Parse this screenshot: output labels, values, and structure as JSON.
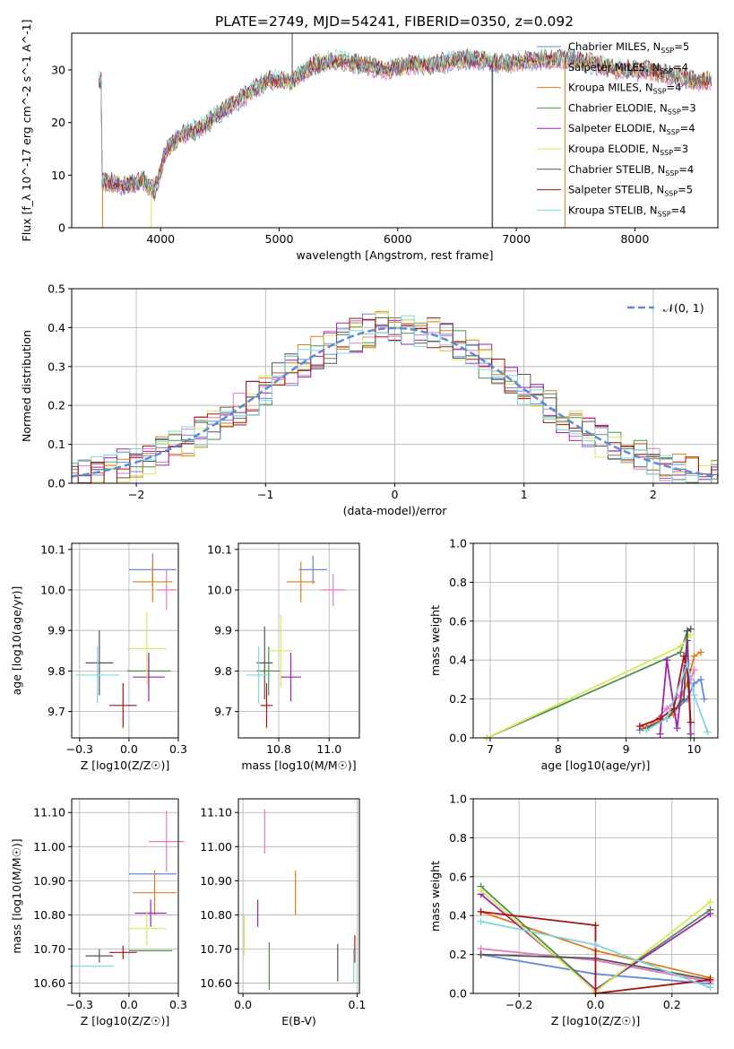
{
  "figure_title": "PLATE=2749, MJD=54241, FIBERID=0350, z=0.092",
  "colors": {
    "Chabrier MILES": "#6687dd",
    "Salpeter MILES": "#e377c2",
    "Kroupa MILES": "#e07b1a",
    "Chabrier ELODIE": "#4f8f4f",
    "Salpeter ELODIE": "#a020b0",
    "Kroupa ELODIE": "#d6ea58",
    "Chabrier STELIB": "#555555",
    "Salpeter STELIB": "#aa1111",
    "Kroupa STELIB": "#7fd6de"
  },
  "chart_data": [
    {
      "type": "line",
      "id": "spectrum",
      "xlabel": "wavelength [Angstrom, rest frame]",
      "ylabel": "Flux [f_λ 10^-17 erg cm^-2 s^-1 A^-1]",
      "xlim": [
        3250,
        8700
      ],
      "ylim": [
        0,
        37
      ],
      "xticks": [
        4000,
        5000,
        6000,
        7000,
        8000
      ],
      "yticks": [
        0,
        10,
        20,
        30
      ],
      "grid": false,
      "legend_position": "upper-right",
      "spectrum_shape": {
        "x": [
          3500,
          3700,
          3850,
          3950,
          4050,
          4200,
          4350,
          4500,
          4700,
          4900,
          5100,
          5300,
          5500,
          5700,
          5900,
          6100,
          6300,
          6500,
          6700,
          6900,
          7100,
          7300,
          7500,
          7700,
          7900,
          8100,
          8300,
          8500,
          8650
        ],
        "y": [
          9,
          8,
          9,
          7,
          15,
          18,
          19,
          22,
          25,
          28,
          28,
          31,
          32,
          31,
          30,
          31,
          31,
          32,
          32,
          31,
          32,
          32,
          32,
          31,
          30,
          30,
          29,
          28,
          28
        ]
      },
      "series": [
        {
          "name": "Chabrier MILES, N_SSP=5",
          "label_main": "Chabrier MILES, N",
          "label_sub": "SSP",
          "label_tail": "=5"
        },
        {
          "name": "Salpeter MILES, N_SSP=4",
          "label_main": "Salpeter MILES, N",
          "label_sub": "SSP",
          "label_tail": "=4"
        },
        {
          "name": "Kroupa MILES, N_SSP=4",
          "label_main": "Kroupa MILES, N",
          "label_sub": "SSP",
          "label_tail": "=4"
        },
        {
          "name": "Chabrier ELODIE, N_SSP=3",
          "label_main": "Chabrier ELODIE, N",
          "label_sub": "SSP",
          "label_tail": "=3"
        },
        {
          "name": "Salpeter ELODIE, N_SSP=4",
          "label_main": "Salpeter ELODIE, N",
          "label_sub": "SSP",
          "label_tail": "=4"
        },
        {
          "name": "Kroupa ELODIE, N_SSP=3",
          "label_main": "Kroupa ELODIE, N",
          "label_sub": "SSP",
          "label_tail": "=3"
        },
        {
          "name": "Chabrier STELIB, N_SSP=4",
          "label_main": "Chabrier STELIB, N",
          "label_sub": "SSP",
          "label_tail": "=4"
        },
        {
          "name": "Salpeter STELIB, N_SSP=5",
          "label_main": "Salpeter STELIB, N",
          "label_sub": "SSP",
          "label_tail": "=5"
        },
        {
          "name": "Kroupa STELIB, N_SSP=4",
          "label_main": "Kroupa STELIB, N",
          "label_sub": "SSP",
          "label_tail": "=4"
        }
      ]
    },
    {
      "type": "histogram",
      "id": "residuals",
      "xlabel": "(data-model)/error",
      "ylabel": "Normed distribution",
      "xlim": [
        -2.5,
        2.5
      ],
      "ylim": [
        0,
        0.5
      ],
      "xticks": [
        -2,
        -1,
        0,
        1,
        2
      ],
      "yticks": [
        0.0,
        0.1,
        0.2,
        0.3,
        0.4,
        0.5
      ],
      "grid": true,
      "legend_position": "upper-right",
      "reference_curve": {
        "name": "N(0,1)",
        "label": "𝒩(0, 1)",
        "mean": 0,
        "sigma": 1
      },
      "bin_width": 0.1
    },
    {
      "type": "errorbar",
      "id": "age_vs_Z",
      "xlabel": "Z [log10(Z/Z☉)]",
      "ylabel": "age [log10(age/yr)]",
      "xlim": [
        -0.29,
        0.25
      ],
      "ylim": [
        9.635,
        10.115
      ],
      "xticks": [
        -0.25,
        0.0,
        0.25
      ],
      "yticks": [
        9.7,
        9.8,
        9.9,
        10.0,
        10.1
      ],
      "grid": true,
      "points": [
        {
          "series": "Chabrier MILES",
          "x": 0.12,
          "y": 10.05,
          "xerr": 0.12,
          "yerr": 0.04
        },
        {
          "series": "Salpeter MILES",
          "x": 0.19,
          "y": 10.0,
          "xerr": 0.05,
          "yerr": 0.05
        },
        {
          "series": "Kroupa MILES",
          "x": 0.12,
          "y": 10.02,
          "xerr": 0.1,
          "yerr": 0.05
        },
        {
          "series": "Chabrier ELODIE",
          "x": 0.1,
          "y": 9.8,
          "xerr": 0.11,
          "yerr": 0.04
        },
        {
          "series": "Salpeter ELODIE",
          "x": 0.1,
          "y": 9.785,
          "xerr": 0.08,
          "yerr": 0.06
        },
        {
          "series": "Kroupa ELODIE",
          "x": 0.09,
          "y": 9.855,
          "xerr": 0.1,
          "yerr": 0.09
        },
        {
          "series": "Chabrier STELIB",
          "x": -0.15,
          "y": 9.82,
          "xerr": 0.07,
          "yerr": 0.08
        },
        {
          "series": "Salpeter STELIB",
          "x": -0.03,
          "y": 9.715,
          "xerr": 0.07,
          "yerr": 0.055
        },
        {
          "series": "Kroupa STELIB",
          "x": -0.16,
          "y": 9.79,
          "xerr": 0.11,
          "yerr": 0.07
        }
      ]
    },
    {
      "type": "errorbar",
      "id": "age_vs_mass",
      "xlabel": "mass [log10(M/M☉)]",
      "ylabel": "",
      "xlim": [
        10.55,
        11.15
      ],
      "ylim": [
        9.635,
        10.115
      ],
      "xticks": [
        10.75,
        11.0
      ],
      "yticks": [
        9.7,
        9.8,
        9.9,
        10.0,
        10.1
      ],
      "grid": true,
      "points": [
        {
          "series": "Chabrier MILES",
          "x": 10.92,
          "y": 10.05,
          "xerr": 0.07,
          "yerr": 0.035
        },
        {
          "series": "Salpeter MILES",
          "x": 11.02,
          "y": 10.0,
          "xerr": 0.06,
          "yerr": 0.04
        },
        {
          "series": "Kroupa MILES",
          "x": 10.86,
          "y": 10.02,
          "xerr": 0.07,
          "yerr": 0.05
        },
        {
          "series": "Chabrier ELODIE",
          "x": 10.7,
          "y": 9.8,
          "xerr": 0.06,
          "yerr": 0.06
        },
        {
          "series": "Salpeter ELODIE",
          "x": 10.81,
          "y": 9.785,
          "xerr": 0.05,
          "yerr": 0.06
        },
        {
          "series": "Kroupa ELODIE",
          "x": 10.76,
          "y": 9.85,
          "xerr": 0.06,
          "yerr": 0.09
        },
        {
          "series": "Chabrier STELIB",
          "x": 10.68,
          "y": 9.82,
          "xerr": 0.04,
          "yerr": 0.09
        },
        {
          "series": "Salpeter STELIB",
          "x": 10.69,
          "y": 9.715,
          "xerr": 0.03,
          "yerr": 0.055
        },
        {
          "series": "Kroupa STELIB",
          "x": 10.65,
          "y": 9.79,
          "xerr": 0.06,
          "yerr": 0.07
        }
      ]
    },
    {
      "type": "line",
      "id": "weight_vs_age",
      "xlabel": "age [log10(age/yr)]",
      "ylabel": "mass weight",
      "xlim": [
        6.75,
        10.35
      ],
      "ylim": [
        0,
        1.0
      ],
      "xticks": [
        7,
        8,
        9,
        10
      ],
      "yticks": [
        0.0,
        0.2,
        0.4,
        0.6,
        0.8,
        1.0
      ],
      "grid": true,
      "series": [
        {
          "series": "Chabrier MILES",
          "points": [
            [
              9.2,
              0.04
            ],
            [
              9.6,
              0.1
            ],
            [
              9.9,
              0.2
            ],
            [
              10.0,
              0.28
            ],
            [
              10.1,
              0.3
            ],
            [
              10.15,
              0.2
            ]
          ]
        },
        {
          "series": "Salpeter MILES",
          "points": [
            [
              9.3,
              0.05
            ],
            [
              9.6,
              0.15
            ],
            [
              9.8,
              0.22
            ],
            [
              9.95,
              0.3
            ],
            [
              10.0,
              0.35
            ]
          ]
        },
        {
          "series": "Kroupa MILES",
          "points": [
            [
              9.25,
              0.05
            ],
            [
              9.7,
              0.12
            ],
            [
              9.9,
              0.28
            ],
            [
              10.0,
              0.42
            ],
            [
              10.1,
              0.44
            ]
          ]
        },
        {
          "series": "Chabrier ELODIE",
          "points": [
            [
              6.95,
              0.0
            ],
            [
              9.8,
              0.44
            ],
            [
              9.9,
              0.55
            ],
            [
              9.95,
              0.0
            ]
          ]
        },
        {
          "series": "Salpeter ELODIE",
          "points": [
            [
              9.5,
              0.02
            ],
            [
              9.6,
              0.4
            ],
            [
              9.75,
              0.05
            ],
            [
              9.9,
              0.5
            ],
            [
              9.95,
              0.02
            ]
          ]
        },
        {
          "series": "Kroupa ELODIE",
          "points": [
            [
              6.95,
              0.0
            ],
            [
              9.8,
              0.47
            ],
            [
              9.95,
              0.53
            ]
          ]
        },
        {
          "series": "Chabrier STELIB",
          "points": [
            [
              9.3,
              0.05
            ],
            [
              9.6,
              0.1
            ],
            [
              9.85,
              0.2
            ],
            [
              9.9,
              0.55
            ],
            [
              9.95,
              0.56
            ]
          ]
        },
        {
          "series": "Salpeter STELIB",
          "points": [
            [
              9.2,
              0.06
            ],
            [
              9.5,
              0.1
            ],
            [
              9.7,
              0.15
            ],
            [
              9.85,
              0.42
            ],
            [
              9.9,
              0.35
            ],
            [
              9.95,
              0.08
            ]
          ]
        },
        {
          "series": "Kroupa STELIB",
          "points": [
            [
              9.3,
              0.04
            ],
            [
              9.6,
              0.1
            ],
            [
              9.9,
              0.38
            ],
            [
              10.0,
              0.22
            ],
            [
              10.2,
              0.03
            ]
          ]
        }
      ]
    },
    {
      "type": "errorbar",
      "id": "mass_vs_Z",
      "xlabel": "Z [log10(Z/Z☉)]",
      "ylabel": "mass [log10(M/M☉)]",
      "xlim": [
        -0.29,
        0.25
      ],
      "ylim": [
        10.57,
        11.14
      ],
      "xticks": [
        -0.25,
        0.0,
        0.25
      ],
      "yticks": [
        10.6,
        10.7,
        10.8,
        10.9,
        11.0,
        11.1
      ],
      "grid": true,
      "points": [
        {
          "series": "Chabrier MILES",
          "x": 0.12,
          "y": 10.92,
          "xerr": 0.12,
          "yerr": 0.0
        },
        {
          "series": "Salpeter MILES",
          "x": 0.19,
          "y": 11.015,
          "xerr": 0.09,
          "yerr": 0.09
        },
        {
          "series": "Kroupa MILES",
          "x": 0.13,
          "y": 10.865,
          "xerr": 0.11,
          "yerr": 0.065
        },
        {
          "series": "Chabrier ELODIE",
          "x": 0.11,
          "y": 10.695,
          "xerr": 0.11,
          "yerr": 0.0
        },
        {
          "series": "Salpeter ELODIE",
          "x": 0.11,
          "y": 10.805,
          "xerr": 0.08,
          "yerr": 0.04
        },
        {
          "series": "Kroupa ELODIE",
          "x": 0.09,
          "y": 10.76,
          "xerr": 0.1,
          "yerr": 0.05
        },
        {
          "series": "Chabrier STELIB",
          "x": -0.15,
          "y": 10.68,
          "xerr": 0.07,
          "yerr": 0.02
        },
        {
          "series": "Salpeter STELIB",
          "x": -0.03,
          "y": 10.69,
          "xerr": 0.07,
          "yerr": 0.02
        },
        {
          "series": "Kroupa STELIB",
          "x": -0.19,
          "y": 10.65,
          "xerr": 0.11,
          "yerr": 0.0
        }
      ]
    },
    {
      "type": "errorbar",
      "id": "mass_vs_EBV",
      "xlabel": "E(B-V)",
      "ylabel": "",
      "xlim": [
        -0.004,
        0.102
      ],
      "ylim": [
        10.57,
        11.14
      ],
      "xticks": [
        0.0,
        0.1
      ],
      "yticks": [
        10.6,
        10.7,
        10.8,
        10.9,
        11.0,
        11.1
      ],
      "grid": true,
      "points": [
        {
          "series": "Salpeter MILES",
          "x": 0.019,
          "y": 11.045,
          "xerr": 0,
          "yerr": 0.065
        },
        {
          "series": "Kroupa MILES",
          "x": 0.046,
          "y": 10.865,
          "xerr": 0,
          "yerr": 0.065
        },
        {
          "series": "Salpeter ELODIE",
          "x": 0.013,
          "y": 10.805,
          "xerr": 0,
          "yerr": 0.04
        },
        {
          "series": "Kroupa ELODIE",
          "x": 0.001,
          "y": 10.74,
          "xerr": 0,
          "yerr": 0.06
        },
        {
          "series": "Chabrier ELODIE",
          "x": 0.023,
          "y": 10.65,
          "xerr": 0,
          "yerr": 0.07
        },
        {
          "series": "Chabrier STELIB",
          "x": 0.083,
          "y": 10.66,
          "xerr": 0,
          "yerr": 0.055
        },
        {
          "series": "Salpeter STELIB",
          "x": 0.098,
          "y": 10.7,
          "xerr": 0,
          "yerr": 0.04
        },
        {
          "series": "Kroupa STELIB",
          "x": 0.097,
          "y": 10.65,
          "xerr": 0,
          "yerr": 0.05
        }
      ]
    },
    {
      "type": "line",
      "id": "weight_vs_Z",
      "xlabel": "Z [log10(Z/Z☉)]",
      "ylabel": "mass weight",
      "xlim": [
        -0.32,
        0.32
      ],
      "ylim": [
        0,
        1.0
      ],
      "xticks": [
        -0.2,
        0.0,
        0.2
      ],
      "yticks": [
        0.0,
        0.2,
        0.4,
        0.6,
        0.8,
        1.0
      ],
      "grid": true,
      "series": [
        {
          "series": "Chabrier MILES",
          "points": [
            [
              -0.3,
              0.2
            ],
            [
              0.0,
              0.1
            ],
            [
              0.3,
              0.05
            ]
          ]
        },
        {
          "series": "Salpeter MILES",
          "points": [
            [
              -0.3,
              0.23
            ],
            [
              0.0,
              0.17
            ],
            [
              0.3,
              0.06
            ]
          ]
        },
        {
          "series": "Kroupa MILES",
          "points": [
            [
              -0.3,
              0.42
            ],
            [
              0.0,
              0.22
            ],
            [
              0.3,
              0.08
            ]
          ]
        },
        {
          "series": "Chabrier ELODIE",
          "points": [
            [
              -0.3,
              0.55
            ],
            [
              0.0,
              0.02
            ],
            [
              0.3,
              0.43
            ]
          ]
        },
        {
          "series": "Salpeter ELODIE",
          "points": [
            [
              -0.3,
              0.51
            ],
            [
              0.0,
              0.02
            ],
            [
              0.3,
              0.41
            ]
          ]
        },
        {
          "series": "Kroupa ELODIE",
          "points": [
            [
              -0.3,
              0.53
            ],
            [
              0.0,
              0.01
            ],
            [
              0.3,
              0.47
            ]
          ]
        },
        {
          "series": "Chabrier STELIB",
          "points": [
            [
              -0.3,
              0.2
            ],
            [
              0.0,
              0.18
            ],
            [
              0.3,
              0.07
            ]
          ]
        },
        {
          "series": "Salpeter STELIB",
          "points": [
            [
              -0.3,
              0.42
            ],
            [
              0.0,
              0.35
            ],
            [
              0.0,
              0.0
            ],
            [
              0.3,
              0.07
            ]
          ]
        },
        {
          "series": "Kroupa STELIB",
          "points": [
            [
              -0.3,
              0.37
            ],
            [
              0.0,
              0.25
            ],
            [
              0.3,
              0.03
            ]
          ]
        }
      ]
    }
  ]
}
